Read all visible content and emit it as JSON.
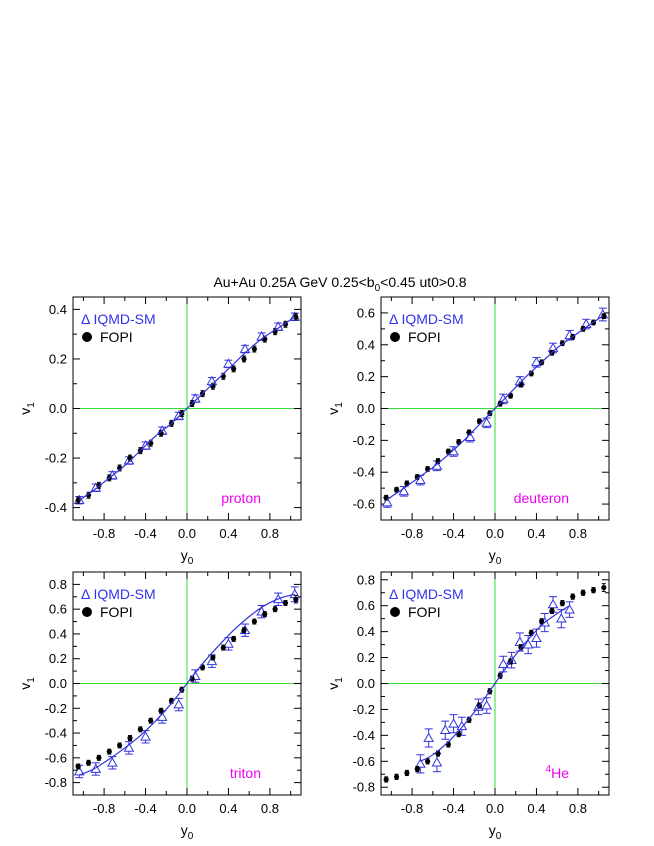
{
  "figure": {
    "title": "Au+Au 0.25A GeV   0.25<b",
    "title_sub": "0",
    "title_rest": "<0.45   ut0>0.8"
  },
  "colors": {
    "model": "#3333dd",
    "data": "#000000",
    "zero_lines": "#33dd33",
    "particle_label": "#ee00ee",
    "legend_model": "#3333ee"
  },
  "chart_data": [
    {
      "type": "scatter",
      "particle": "proton",
      "xlabel": "y",
      "xlabel_sub": "0",
      "ylabel": "v",
      "ylabel_sub": "1",
      "xlim": [
        -1.1,
        1.1
      ],
      "ylim": [
        -0.45,
        0.45
      ],
      "xticks": [
        -0.8,
        -0.4,
        0.0,
        0.4,
        0.8
      ],
      "yticks": [
        -0.4,
        -0.2,
        0.0,
        0.2,
        0.4
      ],
      "ytick_labels": [
        "-0.4",
        "-0.2",
        "0.0",
        "0.2",
        "0.4"
      ],
      "xtick_labels": [
        "-0.8",
        "-0.4",
        "0.0",
        "0.4",
        "0.8"
      ],
      "legend": {
        "model": "IQMD-SM",
        "model_symbol": "Δ",
        "data": "FOPI"
      },
      "series": [
        {
          "name": "IQMD-SM",
          "marker": "open-triangle",
          "x": [
            -1.04,
            -0.88,
            -0.72,
            -0.56,
            -0.4,
            -0.24,
            -0.08,
            0.08,
            0.24,
            0.4,
            0.56,
            0.72,
            0.88,
            1.04
          ],
          "y": [
            -0.37,
            -0.32,
            -0.27,
            -0.21,
            -0.15,
            -0.09,
            -0.03,
            0.04,
            0.11,
            0.18,
            0.24,
            0.29,
            0.33,
            0.37
          ],
          "err": [
            0.015,
            0.015,
            0.015,
            0.015,
            0.015,
            0.015,
            0.015,
            0.015,
            0.015,
            0.015,
            0.015,
            0.015,
            0.015,
            0.015
          ]
        },
        {
          "name": "FOPI",
          "marker": "filled-circle",
          "x": [
            -1.05,
            -0.95,
            -0.85,
            -0.75,
            -0.65,
            -0.55,
            -0.45,
            -0.35,
            -0.25,
            -0.15,
            -0.05,
            0.05,
            0.15,
            0.25,
            0.35,
            0.45,
            0.55,
            0.65,
            0.75,
            0.85,
            0.95,
            1.05
          ],
          "y": [
            -0.37,
            -0.35,
            -0.31,
            -0.28,
            -0.24,
            -0.2,
            -0.17,
            -0.14,
            -0.1,
            -0.06,
            -0.02,
            0.02,
            0.06,
            0.09,
            0.13,
            0.16,
            0.2,
            0.24,
            0.28,
            0.31,
            0.34,
            0.37
          ],
          "err": [
            0.012,
            0.012,
            0.012,
            0.012,
            0.012,
            0.012,
            0.012,
            0.012,
            0.012,
            0.012,
            0.012,
            0.012,
            0.012,
            0.012,
            0.012,
            0.012,
            0.012,
            0.012,
            0.012,
            0.012,
            0.012,
            0.012
          ]
        },
        {
          "name": "fit",
          "marker": "line",
          "x": [
            -1.04,
            -0.9,
            -0.75,
            -0.6,
            -0.45,
            -0.3,
            -0.15,
            0.0,
            0.15,
            0.3,
            0.45,
            0.6,
            0.75,
            0.9,
            1.04
          ],
          "y": [
            -0.37,
            -0.33,
            -0.28,
            -0.23,
            -0.17,
            -0.11,
            -0.06,
            0.0,
            0.06,
            0.12,
            0.18,
            0.24,
            0.29,
            0.33,
            0.37
          ]
        }
      ]
    },
    {
      "type": "scatter",
      "particle": "deuteron",
      "xlabel": "y",
      "xlabel_sub": "0",
      "ylabel": "v",
      "ylabel_sub": "1",
      "xlim": [
        -1.1,
        1.1
      ],
      "ylim": [
        -0.7,
        0.7
      ],
      "xticks": [
        -0.8,
        -0.4,
        0.0,
        0.4,
        0.8
      ],
      "yticks": [
        -0.6,
        -0.4,
        -0.2,
        0.0,
        0.2,
        0.4,
        0.6
      ],
      "ytick_labels": [
        "-0.6",
        "-0.4",
        "-0.2",
        "0.0",
        "0.2",
        "0.4",
        "0.6"
      ],
      "xtick_labels": [
        "-0.8",
        "-0.4",
        "0.0",
        "0.4",
        "0.8"
      ],
      "legend": {
        "model": "IQMD-SM",
        "model_symbol": "Δ",
        "data": "FOPI"
      },
      "series": [
        {
          "name": "IQMD-SM",
          "marker": "open-triangle",
          "x": [
            -1.04,
            -0.88,
            -0.72,
            -0.56,
            -0.4,
            -0.24,
            -0.08,
            0.08,
            0.24,
            0.4,
            0.56,
            0.72,
            0.88,
            1.04
          ],
          "y": [
            -0.59,
            -0.52,
            -0.45,
            -0.36,
            -0.27,
            -0.18,
            -0.09,
            0.06,
            0.17,
            0.29,
            0.38,
            0.46,
            0.53,
            0.59
          ],
          "err": [
            0.03,
            0.03,
            0.03,
            0.03,
            0.03,
            0.03,
            0.03,
            0.03,
            0.03,
            0.03,
            0.03,
            0.03,
            0.03,
            0.04
          ]
        },
        {
          "name": "FOPI",
          "marker": "filled-circle",
          "x": [
            -1.05,
            -0.95,
            -0.85,
            -0.75,
            -0.65,
            -0.55,
            -0.45,
            -0.35,
            -0.25,
            -0.15,
            -0.05,
            0.05,
            0.15,
            0.25,
            0.35,
            0.45,
            0.55,
            0.65,
            0.75,
            0.85,
            0.95,
            1.05
          ],
          "y": [
            -0.56,
            -0.51,
            -0.47,
            -0.43,
            -0.38,
            -0.33,
            -0.27,
            -0.21,
            -0.15,
            -0.08,
            -0.03,
            0.03,
            0.08,
            0.15,
            0.22,
            0.29,
            0.35,
            0.41,
            0.45,
            0.5,
            0.54,
            0.58
          ],
          "err": [
            0.015,
            0.015,
            0.015,
            0.015,
            0.015,
            0.015,
            0.015,
            0.015,
            0.015,
            0.015,
            0.015,
            0.015,
            0.015,
            0.015,
            0.015,
            0.015,
            0.015,
            0.015,
            0.015,
            0.015,
            0.015,
            0.015
          ]
        },
        {
          "name": "fit",
          "marker": "line",
          "x": [
            -1.04,
            -0.9,
            -0.75,
            -0.6,
            -0.45,
            -0.3,
            -0.15,
            0.0,
            0.15,
            0.3,
            0.45,
            0.6,
            0.75,
            0.9,
            1.04
          ],
          "y": [
            -0.57,
            -0.51,
            -0.44,
            -0.37,
            -0.29,
            -0.2,
            -0.1,
            0.0,
            0.1,
            0.2,
            0.29,
            0.38,
            0.45,
            0.52,
            0.58
          ]
        }
      ]
    },
    {
      "type": "scatter",
      "particle": "triton",
      "xlabel": "y",
      "xlabel_sub": "0",
      "ylabel": "v",
      "ylabel_sub": "1",
      "xlim": [
        -1.1,
        1.1
      ],
      "ylim": [
        -0.9,
        0.9
      ],
      "xticks": [
        -0.8,
        -0.4,
        0.0,
        0.4,
        0.8
      ],
      "yticks": [
        -0.8,
        -0.6,
        -0.4,
        -0.2,
        0.0,
        0.2,
        0.4,
        0.6,
        0.8
      ],
      "ytick_labels": [
        "-0.8",
        "-0.6",
        "-0.4",
        "-0.2",
        "0.0",
        "0.2",
        "0.4",
        "0.6",
        "0.8"
      ],
      "xtick_labels": [
        "-0.8",
        "-0.4",
        "0.0",
        "0.4",
        "0.8"
      ],
      "legend": {
        "model": "IQMD-SM",
        "model_symbol": "Δ",
        "data": "FOPI"
      },
      "series": [
        {
          "name": "IQMD-SM",
          "marker": "open-triangle",
          "x": [
            -1.04,
            -0.88,
            -0.72,
            -0.56,
            -0.4,
            -0.24,
            -0.08,
            0.08,
            0.24,
            0.4,
            0.56,
            0.72,
            0.88,
            1.04
          ],
          "y": [
            -0.71,
            -0.69,
            -0.64,
            -0.52,
            -0.43,
            -0.27,
            -0.17,
            0.06,
            0.18,
            0.32,
            0.43,
            0.58,
            0.68,
            0.72
          ],
          "err": [
            0.05,
            0.05,
            0.05,
            0.05,
            0.05,
            0.05,
            0.05,
            0.05,
            0.05,
            0.05,
            0.05,
            0.05,
            0.05,
            0.06
          ]
        },
        {
          "name": "FOPI",
          "marker": "filled-circle",
          "x": [
            -1.05,
            -0.95,
            -0.85,
            -0.75,
            -0.65,
            -0.55,
            -0.45,
            -0.35,
            -0.25,
            -0.15,
            -0.05,
            0.05,
            0.15,
            0.25,
            0.35,
            0.45,
            0.55,
            0.65,
            0.75,
            0.85,
            0.95,
            1.05
          ],
          "y": [
            -0.67,
            -0.64,
            -0.6,
            -0.55,
            -0.5,
            -0.44,
            -0.37,
            -0.3,
            -0.22,
            -0.14,
            -0.05,
            0.04,
            0.13,
            0.21,
            0.29,
            0.36,
            0.43,
            0.5,
            0.56,
            0.6,
            0.65,
            0.68
          ],
          "err": [
            0.02,
            0.02,
            0.02,
            0.02,
            0.02,
            0.02,
            0.02,
            0.02,
            0.02,
            0.02,
            0.02,
            0.02,
            0.02,
            0.02,
            0.02,
            0.02,
            0.02,
            0.02,
            0.02,
            0.02,
            0.02,
            0.03
          ]
        },
        {
          "name": "fit",
          "marker": "line",
          "x": [
            -1.04,
            -0.9,
            -0.75,
            -0.6,
            -0.45,
            -0.3,
            -0.15,
            0.0,
            0.15,
            0.3,
            0.45,
            0.6,
            0.75,
            0.9,
            1.04
          ],
          "y": [
            -0.74,
            -0.69,
            -0.61,
            -0.52,
            -0.42,
            -0.3,
            -0.16,
            0.0,
            0.16,
            0.3,
            0.43,
            0.54,
            0.63,
            0.69,
            0.72
          ]
        }
      ]
    },
    {
      "type": "scatter",
      "particle": "He",
      "particle_sup": "4",
      "xlabel": "y",
      "xlabel_sub": "0",
      "ylabel": "v",
      "ylabel_sub": "1",
      "xlim": [
        -1.1,
        1.1
      ],
      "ylim": [
        -0.86,
        0.86
      ],
      "xticks": [
        -0.8,
        -0.4,
        0.0,
        0.4,
        0.8
      ],
      "yticks": [
        -0.8,
        -0.6,
        -0.4,
        -0.2,
        0.0,
        0.2,
        0.4,
        0.6,
        0.8
      ],
      "ytick_labels": [
        "-0.8",
        "-0.6",
        "-0.4",
        "-0.2",
        "0.0",
        "0.2",
        "0.4",
        "0.6",
        "0.8"
      ],
      "xtick_labels": [
        "-0.8",
        "-0.4",
        "0.0",
        "0.4",
        "0.8"
      ],
      "legend": {
        "model": "IQMD-SM",
        "model_symbol": "Δ",
        "data": "FOPI"
      },
      "series": [
        {
          "name": "IQMD-SM",
          "marker": "open-triangle",
          "x": [
            -0.72,
            -0.64,
            -0.56,
            -0.48,
            -0.4,
            -0.32,
            -0.16,
            -0.08,
            0.08,
            0.16,
            0.24,
            0.32,
            0.4,
            0.48,
            0.56,
            0.64,
            0.72
          ],
          "y": [
            -0.62,
            -0.42,
            -0.61,
            -0.36,
            -0.31,
            -0.33,
            -0.18,
            -0.17,
            0.15,
            0.18,
            0.32,
            0.3,
            0.35,
            0.47,
            0.61,
            0.5,
            0.57
          ],
          "err": [
            0.07,
            0.07,
            0.07,
            0.07,
            0.07,
            0.07,
            0.06,
            0.06,
            0.06,
            0.06,
            0.07,
            0.07,
            0.07,
            0.07,
            0.06,
            0.07,
            0.06
          ]
        },
        {
          "name": "FOPI",
          "marker": "filled-circle",
          "x": [
            -1.05,
            -0.95,
            -0.85,
            -0.75,
            -0.65,
            -0.55,
            -0.45,
            -0.35,
            -0.25,
            -0.15,
            -0.05,
            0.05,
            0.15,
            0.25,
            0.35,
            0.45,
            0.55,
            0.65,
            0.75,
            0.85,
            0.95,
            1.05
          ],
          "y": [
            -0.74,
            -0.72,
            -0.69,
            -0.66,
            -0.6,
            -0.54,
            -0.47,
            -0.39,
            -0.28,
            -0.17,
            -0.06,
            0.06,
            0.17,
            0.28,
            0.39,
            0.48,
            0.56,
            0.62,
            0.67,
            0.7,
            0.72,
            0.74
          ],
          "err": [
            0.02,
            0.02,
            0.02,
            0.02,
            0.02,
            0.02,
            0.02,
            0.02,
            0.02,
            0.02,
            0.02,
            0.02,
            0.02,
            0.02,
            0.02,
            0.02,
            0.02,
            0.02,
            0.02,
            0.02,
            0.02,
            0.03
          ]
        },
        {
          "name": "fit",
          "marker": "line",
          "x": [
            -0.72,
            -0.6,
            -0.45,
            -0.3,
            -0.15,
            0.0,
            0.15,
            0.3,
            0.45,
            0.6,
            0.72
          ],
          "y": [
            -0.6,
            -0.55,
            -0.45,
            -0.32,
            -0.17,
            0.0,
            0.17,
            0.32,
            0.45,
            0.54,
            0.6
          ]
        }
      ]
    }
  ]
}
